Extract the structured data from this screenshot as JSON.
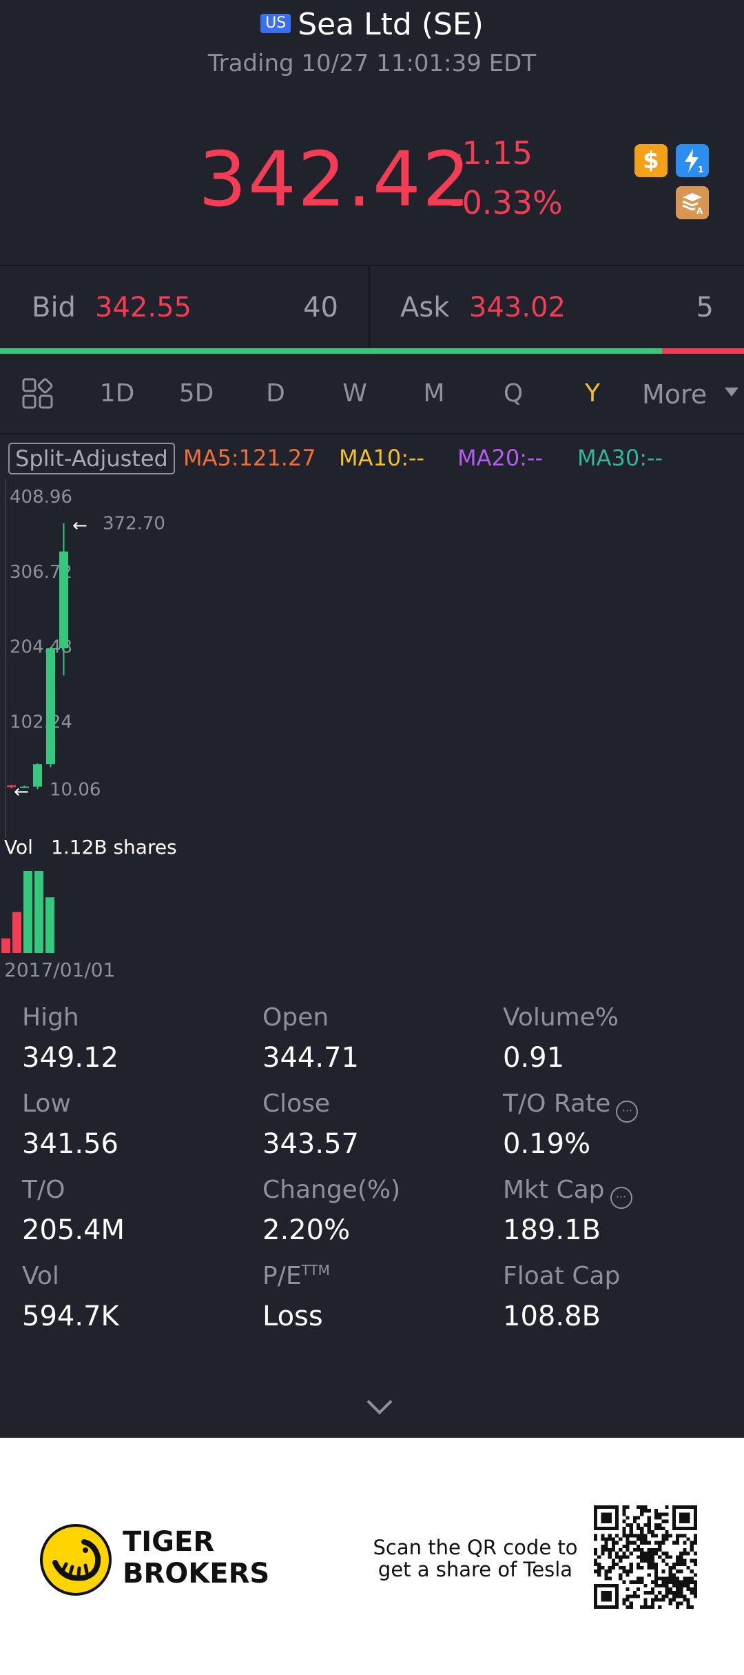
{
  "header": {
    "market_badge": "US",
    "title": "Sea Ltd (SE)",
    "status": "Trading 10/27 11:01:39 EDT"
  },
  "quote": {
    "price": "342.42",
    "change": "-1.15",
    "change_pct": "-0.33%"
  },
  "quote_icons": [
    "dollar-icon",
    "lightning-level1-icon",
    "layers-a-icon"
  ],
  "order_book": {
    "bid_label": "Bid",
    "bid_price": "342.55",
    "bid_size": "40",
    "ask_label": "Ask",
    "ask_price": "343.02",
    "ask_size": "5",
    "bid_ratio": 0.89
  },
  "tabs": {
    "items": [
      "1D",
      "5D",
      "D",
      "W",
      "M",
      "Q",
      "Y"
    ],
    "active": "Y",
    "more_label": "More"
  },
  "indicators": {
    "split_label": "Split-Adjusted",
    "ma5": "MA5:121.27",
    "ma10": "MA10:--",
    "ma20": "MA20:--",
    "ma30": "MA30:--"
  },
  "colors": {
    "up": "#35c77b",
    "down": "#f23d54",
    "ma5": "#f0703a",
    "ma10": "#f3c12d",
    "ma20": "#b35df0",
    "ma30": "#34b59a"
  },
  "chart_data": {
    "type": "candlestick",
    "y_ticks": [
      "408.96",
      "306.72",
      "204.48",
      "102.24"
    ],
    "ylim": [
      0,
      408.96
    ],
    "high_marker": "372.70",
    "low_marker": "10.06",
    "x_label_start": "2017/01/01",
    "candles": [
      {
        "open": 15.0,
        "close": 13.0,
        "high": 16.0,
        "low": 11.0
      },
      {
        "open": 13.0,
        "close": 13.5,
        "high": 14.5,
        "low": 11.5
      },
      {
        "open": 13.5,
        "close": 44.0,
        "high": 45.0,
        "low": 10.06
      },
      {
        "open": 44.0,
        "close": 202.0,
        "high": 204.0,
        "low": 40.0
      },
      {
        "open": 202.0,
        "close": 334.0,
        "high": 372.7,
        "low": 165.0
      }
    ],
    "volume_label": "Vol",
    "volume_value": "1.12B shares",
    "volumes": [
      0.2,
      0.56,
      1.12,
      1.12,
      0.76
    ],
    "volume_colors": [
      "down",
      "down",
      "up",
      "up",
      "up"
    ]
  },
  "stats": [
    {
      "label": "High",
      "value": "349.12"
    },
    {
      "label": "Open",
      "value": "344.71"
    },
    {
      "label": "Volume%",
      "value": "0.91"
    },
    {
      "label": "Low",
      "value": "341.56"
    },
    {
      "label": "Close",
      "value": "343.57"
    },
    {
      "label": "T/O Rate",
      "value": "0.19%",
      "info": true
    },
    {
      "label": "T/O",
      "value": "205.4M"
    },
    {
      "label": "Change(%)",
      "value": "2.20%"
    },
    {
      "label": "Mkt Cap",
      "value": "189.1B",
      "info": true
    },
    {
      "label": "Vol",
      "value": "594.7K"
    },
    {
      "label": "P/E",
      "sup": "TTM",
      "value": "Loss"
    },
    {
      "label": "Float Cap",
      "value": "108.8B"
    }
  ],
  "footer": {
    "brand_line1": "TIGER",
    "brand_line2": "BROKERS",
    "qr_caption_line1": "Scan the QR code to",
    "qr_caption_line2": "get a share of Tesla"
  }
}
